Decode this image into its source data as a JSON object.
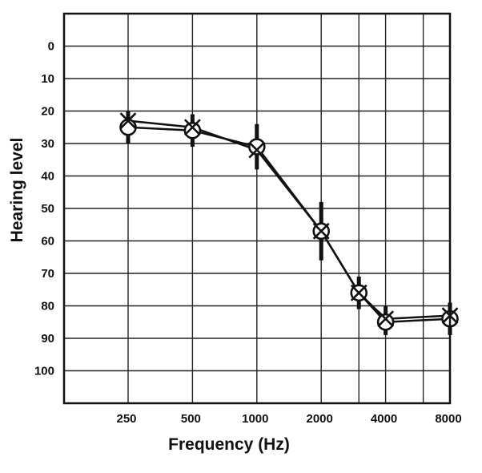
{
  "chart_data": {
    "type": "line",
    "title": "",
    "xlabel": "Frequency (Hz)",
    "ylabel": "Hearing level",
    "x_scale": "log",
    "y_inverted": true,
    "grid": true,
    "legend": "none",
    "x_ticks": [
      250,
      500,
      1000,
      2000,
      4000,
      8000
    ],
    "x_tick_labels": [
      "250",
      "500",
      "1000",
      "2000",
      "4000",
      "8000"
    ],
    "x_extra_gridlines": [
      3000,
      6000
    ],
    "ylim": [
      -10,
      110
    ],
    "y_ticks": [
      0,
      10,
      20,
      30,
      40,
      50,
      60,
      70,
      80,
      90,
      100
    ],
    "y_tick_labels": [
      "0",
      "10",
      "20",
      "30",
      "40",
      "50",
      "60",
      "70",
      "80",
      "90",
      "100"
    ],
    "x": [
      250,
      500,
      1000,
      2000,
      3000,
      4000,
      8000
    ],
    "series": [
      {
        "marker": "circle",
        "values": [
          25,
          26,
          31,
          57,
          76,
          85,
          84
        ],
        "error_low": [
          20,
          21,
          24,
          48,
          71,
          80,
          79
        ],
        "error_high": [
          30,
          31,
          38,
          66,
          81,
          89,
          89
        ],
        "color": "#111111"
      },
      {
        "marker": "cross",
        "values": [
          23,
          25,
          32,
          57,
          76,
          84,
          83
        ],
        "color": "#111111"
      }
    ]
  }
}
